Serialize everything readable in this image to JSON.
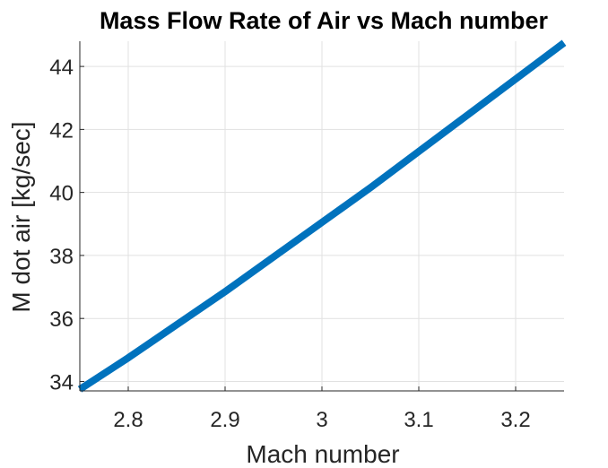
{
  "chart_data": {
    "type": "line",
    "title": "Mass Flow Rate of Air vs Mach number",
    "xlabel": "Mach number",
    "ylabel": "M dot air [kg/sec]",
    "xlim": [
      2.75,
      3.25
    ],
    "ylim": [
      33.7,
      44.8
    ],
    "xticks": [
      2.8,
      2.9,
      3.0,
      3.1,
      3.2
    ],
    "xtick_labels": [
      "2.8",
      "2.9",
      "3",
      "3.1",
      "3.2"
    ],
    "yticks": [
      34,
      36,
      38,
      40,
      42,
      44
    ],
    "ytick_labels": [
      "34",
      "36",
      "38",
      "40",
      "42",
      "44"
    ],
    "grid": true,
    "series": [
      {
        "color": "#0072BD",
        "x": [
          2.75,
          2.8,
          2.85,
          2.9,
          2.95,
          3.0,
          3.05,
          3.1,
          3.15,
          3.2,
          3.25
        ],
        "y": [
          33.75,
          34.75,
          35.8,
          36.85,
          37.95,
          39.05,
          40.15,
          41.3,
          42.45,
          43.6,
          44.75
        ]
      }
    ]
  }
}
